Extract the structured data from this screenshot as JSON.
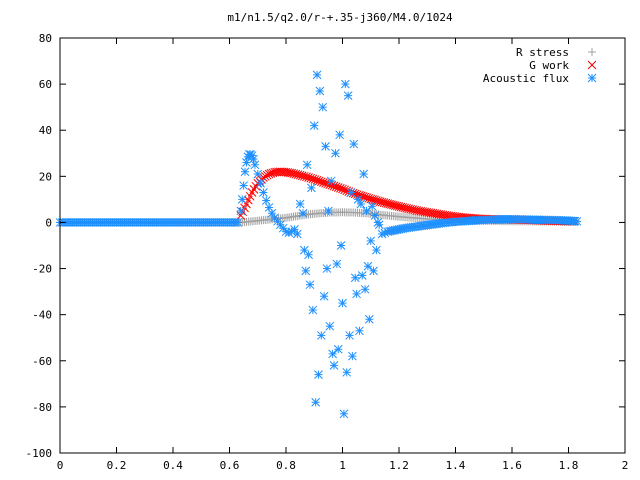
{
  "chart_data": {
    "type": "scatter",
    "title": "m1/n1.5/q2.0/r-+.35-j360/M4.0/1024",
    "xlim": [
      0,
      2
    ],
    "ylim": [
      -100,
      80
    ],
    "x_ticks": [
      "0",
      "0.2",
      "0.4",
      "0.6",
      "0.8",
      "1",
      "1.2",
      "1.4",
      "1.6",
      "1.8",
      "2"
    ],
    "y_ticks": [
      "80",
      "60",
      "40",
      "20",
      "0",
      "-20",
      "-40",
      "-60",
      "-80",
      "-100"
    ],
    "x_tick_values": [
      0,
      0.2,
      0.4,
      0.6,
      0.8,
      1.0,
      1.2,
      1.4,
      1.6,
      1.8,
      2.0
    ],
    "y_tick_values": [
      80,
      60,
      40,
      20,
      0,
      -20,
      -40,
      -60,
      -80,
      -100
    ],
    "legend_position": "top-right",
    "grid": false,
    "series": [
      {
        "name": "R stress",
        "color": "#a0a0a0",
        "marker": "plus",
        "x": [
          0,
          0.1,
          0.2,
          0.3,
          0.4,
          0.5,
          0.6,
          0.64,
          0.68,
          0.72,
          0.76,
          0.8,
          0.84,
          0.88,
          0.92,
          0.96,
          1.0,
          1.04,
          1.08,
          1.12,
          1.16,
          1.2,
          1.25,
          1.3,
          1.35,
          1.4,
          1.45,
          1.5,
          1.55,
          1.6,
          1.65,
          1.7,
          1.75,
          1.8,
          1.83
        ],
        "y": [
          0,
          0,
          0,
          0,
          0,
          0,
          0,
          0,
          0.5,
          1,
          1.5,
          2,
          2.8,
          3.5,
          4,
          4.3,
          4.4,
          4.3,
          4,
          3.5,
          3,
          2.5,
          2,
          1.5,
          1.2,
          1,
          0.8,
          0.7,
          0.6,
          0.5,
          0.5,
          0.4,
          0.4,
          0.3,
          0.3
        ]
      },
      {
        "name": "G work",
        "color": "#ff0000",
        "marker": "cross",
        "x": [
          0.64,
          0.66,
          0.68,
          0.7,
          0.72,
          0.74,
          0.76,
          0.78,
          0.8,
          0.82,
          0.85,
          0.88,
          0.91,
          0.94,
          0.97,
          1.0,
          1.03,
          1.06,
          1.1,
          1.14,
          1.18,
          1.22,
          1.27,
          1.32,
          1.37,
          1.42,
          1.47,
          1.52,
          1.57,
          1.62,
          1.67,
          1.72,
          1.77,
          1.82
        ],
        "y": [
          3,
          8,
          13,
          17,
          19.5,
          21,
          21.8,
          22,
          21.8,
          21.4,
          20.5,
          19.5,
          18.3,
          17,
          15.8,
          14.5,
          13,
          11.8,
          10.2,
          8.8,
          7.5,
          6.3,
          5,
          4,
          3,
          2.2,
          1.7,
          1.4,
          1.3,
          1.2,
          1,
          0.8,
          0.6,
          0.5
        ]
      },
      {
        "name": "Acoustic flux",
        "color": "#1e90ff",
        "marker": "star",
        "x": [
          0,
          0.05,
          0.1,
          0.15,
          0.2,
          0.25,
          0.3,
          0.35,
          0.4,
          0.45,
          0.5,
          0.55,
          0.6,
          0.63,
          0.64,
          0.645,
          0.65,
          0.655,
          0.66,
          0.665,
          0.67,
          0.675,
          0.68,
          0.685,
          0.69,
          0.7,
          0.71,
          0.72,
          0.73,
          0.74,
          0.75,
          0.76,
          0.77,
          0.78,
          0.79,
          0.8,
          0.81,
          0.82,
          0.83,
          0.84,
          0.85,
          0.86,
          0.865,
          0.87,
          0.875,
          0.88,
          0.885,
          0.89,
          0.895,
          0.9,
          0.905,
          0.91,
          0.915,
          0.92,
          0.925,
          0.93,
          0.935,
          0.94,
          0.945,
          0.95,
          0.955,
          0.96,
          0.965,
          0.97,
          0.975,
          0.98,
          0.985,
          0.99,
          0.995,
          1.0,
          1.005,
          1.01,
          1.015,
          1.02,
          1.025,
          1.03,
          1.035,
          1.04,
          1.045,
          1.05,
          1.055,
          1.06,
          1.065,
          1.07,
          1.075,
          1.08,
          1.085,
          1.09,
          1.095,
          1.1,
          1.105,
          1.11,
          1.115,
          1.12,
          1.125,
          1.13,
          1.14,
          1.15,
          1.16,
          1.18,
          1.2,
          1.22,
          1.25,
          1.28,
          1.31,
          1.34,
          1.37,
          1.4,
          1.44,
          1.48,
          1.52,
          1.56,
          1.6,
          1.64,
          1.68,
          1.72,
          1.76,
          1.8,
          1.83
        ],
        "y": [
          0,
          0,
          0,
          0,
          0,
          0,
          0,
          0,
          0,
          0,
          0,
          0,
          0,
          0,
          5,
          10,
          16,
          22,
          26,
          28.5,
          29.5,
          29.5,
          29,
          27.5,
          25,
          21,
          17,
          13,
          9.5,
          6.5,
          4,
          2,
          0.5,
          -1,
          -2.5,
          -4,
          -4.5,
          -4,
          -3,
          -5,
          8,
          4,
          -12,
          -21,
          25,
          -14,
          -27,
          15,
          -38,
          42,
          -78,
          64,
          -66,
          57,
          -49,
          50,
          -32,
          33,
          -20,
          5,
          -45,
          18,
          -57,
          -62,
          30,
          -18,
          -55,
          38,
          -10,
          -35,
          -83,
          60,
          -65,
          55,
          -49,
          13,
          -58,
          34,
          -24,
          -31,
          10,
          -47,
          8,
          -23,
          21,
          -29,
          5,
          -19,
          -42,
          -8,
          7,
          -21,
          3,
          -12,
          0,
          -1,
          -5,
          -4.5,
          -4,
          -3.5,
          -3,
          -2.5,
          -2,
          -1.5,
          -1,
          -0.5,
          0,
          0.3,
          0.6,
          0.9,
          1.2,
          1.3,
          1.4,
          1.3,
          1.2,
          1.1,
          1,
          0.8,
          0.5
        ]
      }
    ]
  }
}
